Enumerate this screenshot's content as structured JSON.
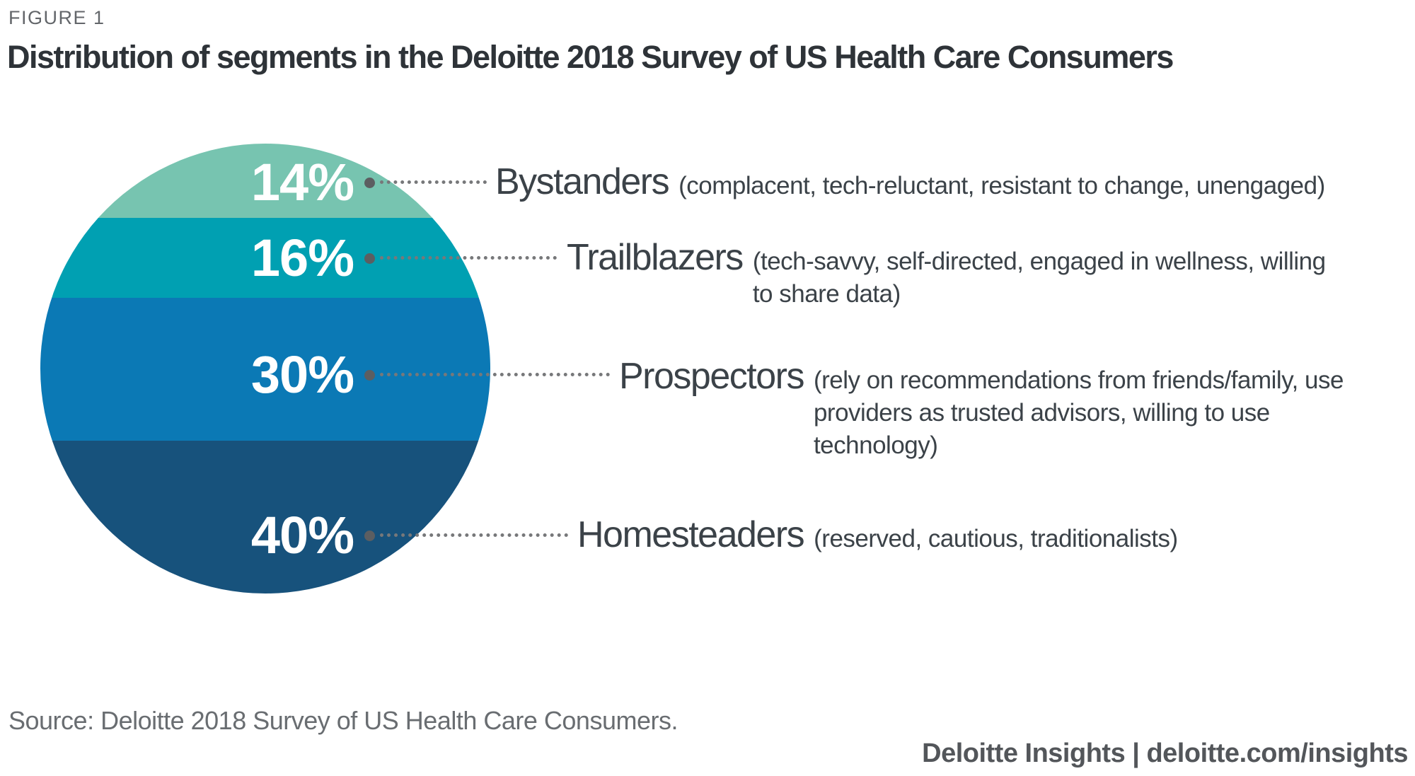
{
  "figure_label": "FIGURE 1",
  "title": "Distribution of segments in the Deloitte 2018 Survey of US Health Care Consumers",
  "source_note": "Source: Deloitte 2018 Survey of US Health Care Consumers.",
  "footer": "Deloitte Insights | deloitte.com/insights",
  "colors": {
    "segment_green": "#77c4b0",
    "segment_teal": "#00a0b2",
    "segment_blue": "#0b79b5",
    "segment_navy": "#17527c",
    "leader_gray": "#77787a",
    "title_dark": "#2e3338",
    "label_dark": "#3b4248",
    "source_gray": "#696d71",
    "footer_gray": "#53565a"
  },
  "chart_data": {
    "type": "pie",
    "variant": "circle-with-stacked-horizontal-bands",
    "title": "Distribution of segments in the Deloitte 2018 Survey of US Health Care Consumers",
    "unit": "%",
    "legend_position": "right",
    "segments": [
      {
        "label": "Bystanders",
        "value": 14,
        "value_label": "14%",
        "description": "(complacent, tech-reluctant, resistant to change, unengaged)",
        "color": "#77c4b0"
      },
      {
        "label": "Trailblazers",
        "value": 16,
        "value_label": "16%",
        "description": "(tech-savvy, self-directed, engaged in wellness, willing to share data)",
        "color": "#00a0b2"
      },
      {
        "label": "Prospectors",
        "value": 30,
        "value_label": "30%",
        "description": "(rely on recommendations from friends/family, use providers as trusted advisors, willing to use technology)",
        "color": "#0b79b5"
      },
      {
        "label": "Homesteaders",
        "value": 40,
        "value_label": "40%",
        "description": "(reserved, cautious, traditionalists)",
        "color": "#17527c"
      }
    ]
  }
}
